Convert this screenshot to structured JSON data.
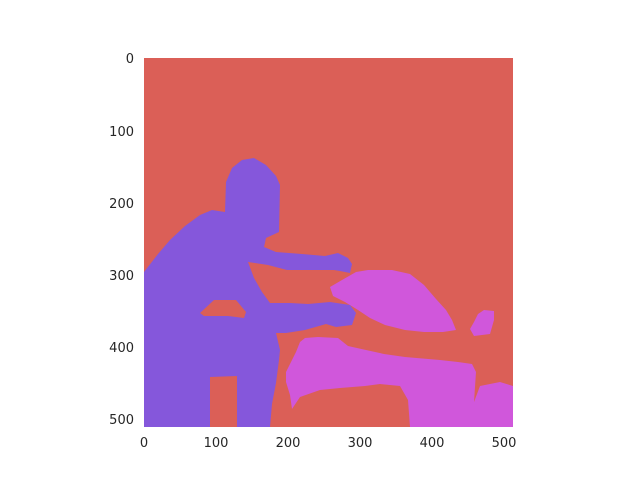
{
  "image": {
    "kind": "segmentation-mask",
    "background_color": "#ffffff",
    "x_ticks": [
      "0",
      "100",
      "200",
      "300",
      "400",
      "500"
    ],
    "y_ticks": [
      "0",
      "100",
      "200",
      "300",
      "400",
      "500"
    ],
    "classes": [
      {
        "color": "#db5f57",
        "label": ""
      },
      {
        "color": "#8557db",
        "label": ""
      },
      {
        "color": "#d057db",
        "label": ""
      }
    ]
  }
}
